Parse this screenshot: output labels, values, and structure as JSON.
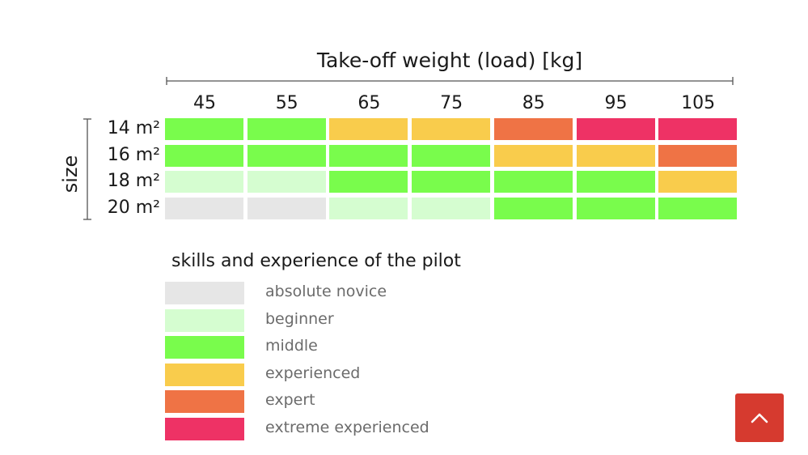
{
  "chart_data": {
    "type": "heatmap",
    "title": "",
    "xlabel": "Take-off weight (load) [kg]",
    "ylabel": "size",
    "x_categories": [
      "45",
      "55",
      "65",
      "75",
      "85",
      "95",
      "105"
    ],
    "y_categories": [
      "14 m²",
      "16 m²",
      "18 m²",
      "20 m²"
    ],
    "cells": [
      [
        "middle",
        "middle",
        "experienced",
        "experienced",
        "expert",
        "extreme experienced",
        "extreme experienced"
      ],
      [
        "middle",
        "middle",
        "middle",
        "middle",
        "experienced",
        "experienced",
        "expert"
      ],
      [
        "beginner",
        "beginner",
        "middle",
        "middle",
        "middle",
        "middle",
        "experienced"
      ],
      [
        "absolute novice",
        "absolute novice",
        "beginner",
        "beginner",
        "middle",
        "middle",
        "middle"
      ]
    ],
    "legend": {
      "title": "skills and experience of the pilot",
      "placement": "bottom-left",
      "items": [
        {
          "label": "absolute novice",
          "color": "#e6e6e6"
        },
        {
          "label": "beginner",
          "color": "#d5fdd0"
        },
        {
          "label": "middle",
          "color": "#79fc4c"
        },
        {
          "label": "experienced",
          "color": "#f9cc4c"
        },
        {
          "label": "expert",
          "color": "#ef7345"
        },
        {
          "label": "extreme experienced",
          "color": "#ee3265"
        }
      ]
    }
  },
  "ui": {
    "scroll_top_icon": "chevron-up-icon",
    "scroll_top_color": "#d63a2f"
  }
}
